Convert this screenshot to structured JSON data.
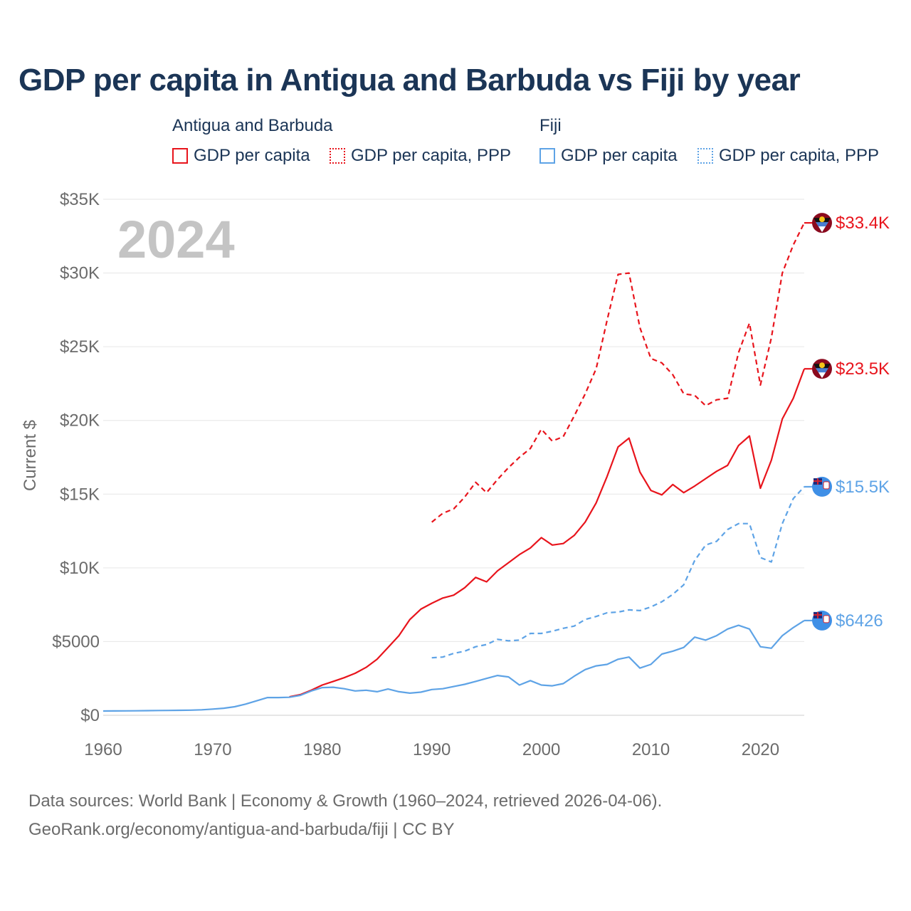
{
  "title": "GDP per capita in Antigua and Barbuda vs Fiji by year",
  "legend": {
    "groups": [
      {
        "name": "Antigua and Barbuda",
        "items": [
          "GDP per capita",
          "GDP per capita, PPP"
        ]
      },
      {
        "name": "Fiji",
        "items": [
          "GDP per capita",
          "GDP per capita, PPP"
        ]
      }
    ]
  },
  "year_watermark": "2024",
  "source": {
    "line1": "Data sources: World Bank | Economy & Growth (1960–2024, retrieved 2026-04-06).",
    "line2": "GeoRank.org/economy/antigua-and-barbuda/fiji | CC BY"
  },
  "colors": {
    "antigua": "#e8141c",
    "fiji": "#5ea3e6",
    "title": "#1b3556",
    "grid": "#e6e6e6",
    "axis_text": "#6b6b6b"
  },
  "chart_data": {
    "type": "line",
    "title": "GDP per capita in Antigua and Barbuda vs Fiji by year",
    "xlabel": "",
    "ylabel": "Current $",
    "xlim": [
      1960,
      2024
    ],
    "ylim": [
      0,
      35000
    ],
    "x_ticks": [
      1960,
      1970,
      1980,
      1990,
      2000,
      2010,
      2020
    ],
    "x_tick_labels": [
      "1960",
      "1970",
      "1980",
      "1990",
      "2000",
      "2010",
      "2020"
    ],
    "y_ticks": [
      0,
      5000,
      10000,
      15000,
      20000,
      25000,
      30000,
      35000
    ],
    "y_tick_labels": [
      "$0",
      "$5000",
      "$10K",
      "$15K",
      "$20K",
      "$25K",
      "$30K",
      "$35K"
    ],
    "grid": true,
    "series": [
      {
        "name": "Antigua and Barbuda GDP per capita",
        "country": "antigua",
        "style": "solid",
        "end_label": "$23.5K",
        "points": [
          [
            1977,
            1250
          ],
          [
            1978,
            1400
          ],
          [
            1979,
            1700
          ],
          [
            1980,
            2050
          ],
          [
            1981,
            2300
          ],
          [
            1982,
            2550
          ],
          [
            1983,
            2850
          ],
          [
            1984,
            3250
          ],
          [
            1985,
            3800
          ],
          [
            1986,
            4600
          ],
          [
            1987,
            5400
          ],
          [
            1988,
            6500
          ],
          [
            1989,
            7200
          ],
          [
            1990,
            7600
          ],
          [
            1991,
            7950
          ],
          [
            1992,
            8150
          ],
          [
            1993,
            8650
          ],
          [
            1994,
            9350
          ],
          [
            1995,
            9050
          ],
          [
            1996,
            9800
          ],
          [
            1997,
            10350
          ],
          [
            1998,
            10900
          ],
          [
            1999,
            11350
          ],
          [
            2000,
            12050
          ],
          [
            2001,
            11550
          ],
          [
            2002,
            11650
          ],
          [
            2003,
            12200
          ],
          [
            2004,
            13100
          ],
          [
            2005,
            14400
          ],
          [
            2006,
            16200
          ],
          [
            2007,
            18200
          ],
          [
            2008,
            18800
          ],
          [
            2009,
            16500
          ],
          [
            2010,
            15250
          ],
          [
            2011,
            14950
          ],
          [
            2012,
            15650
          ],
          [
            2013,
            15100
          ],
          [
            2014,
            15550
          ],
          [
            2015,
            16050
          ],
          [
            2016,
            16550
          ],
          [
            2017,
            16950
          ],
          [
            2018,
            18300
          ],
          [
            2019,
            18950
          ],
          [
            2020,
            15400
          ],
          [
            2021,
            17300
          ],
          [
            2022,
            20100
          ],
          [
            2023,
            21500
          ],
          [
            2024,
            23500
          ]
        ]
      },
      {
        "name": "Antigua and Barbuda GDP per capita, PPP",
        "country": "antigua",
        "style": "dashed",
        "end_label": "$33.4K",
        "points": [
          [
            1990,
            13100
          ],
          [
            1991,
            13700
          ],
          [
            1992,
            14000
          ],
          [
            1993,
            14800
          ],
          [
            1994,
            15800
          ],
          [
            1995,
            15100
          ],
          [
            1996,
            16000
          ],
          [
            1997,
            16800
          ],
          [
            1998,
            17500
          ],
          [
            1999,
            18100
          ],
          [
            2000,
            19400
          ],
          [
            2001,
            18600
          ],
          [
            2002,
            18900
          ],
          [
            2003,
            20300
          ],
          [
            2004,
            21800
          ],
          [
            2005,
            23500
          ],
          [
            2006,
            26800
          ],
          [
            2007,
            29900
          ],
          [
            2008,
            30000
          ],
          [
            2009,
            26300
          ],
          [
            2010,
            24200
          ],
          [
            2011,
            23900
          ],
          [
            2012,
            23100
          ],
          [
            2013,
            21800
          ],
          [
            2014,
            21700
          ],
          [
            2015,
            21000
          ],
          [
            2016,
            21400
          ],
          [
            2017,
            21500
          ],
          [
            2018,
            24600
          ],
          [
            2019,
            26600
          ],
          [
            2020,
            22400
          ],
          [
            2021,
            25600
          ],
          [
            2022,
            30000
          ],
          [
            2023,
            31900
          ],
          [
            2024,
            33400
          ]
        ]
      },
      {
        "name": "Fiji GDP per capita",
        "country": "fiji",
        "style": "solid",
        "end_label": "$6426",
        "points": [
          [
            1960,
            290
          ],
          [
            1961,
            295
          ],
          [
            1962,
            300
          ],
          [
            1963,
            305
          ],
          [
            1964,
            315
          ],
          [
            1965,
            325
          ],
          [
            1966,
            330
          ],
          [
            1967,
            340
          ],
          [
            1968,
            350
          ],
          [
            1969,
            370
          ],
          [
            1970,
            420
          ],
          [
            1971,
            480
          ],
          [
            1972,
            580
          ],
          [
            1973,
            760
          ],
          [
            1974,
            980
          ],
          [
            1975,
            1200
          ],
          [
            1976,
            1200
          ],
          [
            1977,
            1220
          ],
          [
            1978,
            1350
          ],
          [
            1979,
            1650
          ],
          [
            1980,
            1880
          ],
          [
            1981,
            1900
          ],
          [
            1982,
            1800
          ],
          [
            1983,
            1650
          ],
          [
            1984,
            1700
          ],
          [
            1985,
            1600
          ],
          [
            1986,
            1780
          ],
          [
            1987,
            1600
          ],
          [
            1988,
            1500
          ],
          [
            1989,
            1570
          ],
          [
            1990,
            1750
          ],
          [
            1991,
            1800
          ],
          [
            1992,
            1950
          ],
          [
            1993,
            2100
          ],
          [
            1994,
            2300
          ],
          [
            1995,
            2500
          ],
          [
            1996,
            2700
          ],
          [
            1997,
            2600
          ],
          [
            1998,
            2050
          ],
          [
            1999,
            2350
          ],
          [
            2000,
            2050
          ],
          [
            2001,
            2000
          ],
          [
            2002,
            2150
          ],
          [
            2003,
            2650
          ],
          [
            2004,
            3100
          ],
          [
            2005,
            3350
          ],
          [
            2006,
            3450
          ],
          [
            2007,
            3800
          ],
          [
            2008,
            3950
          ],
          [
            2009,
            3200
          ],
          [
            2010,
            3450
          ],
          [
            2011,
            4150
          ],
          [
            2012,
            4350
          ],
          [
            2013,
            4600
          ],
          [
            2014,
            5300
          ],
          [
            2015,
            5100
          ],
          [
            2016,
            5400
          ],
          [
            2017,
            5850
          ],
          [
            2018,
            6100
          ],
          [
            2019,
            5850
          ],
          [
            2020,
            4650
          ],
          [
            2021,
            4550
          ],
          [
            2022,
            5400
          ],
          [
            2023,
            5950
          ],
          [
            2024,
            6426
          ]
        ]
      },
      {
        "name": "Fiji GDP per capita, PPP",
        "country": "fiji",
        "style": "dashed",
        "end_label": "$15.5K",
        "points": [
          [
            1990,
            3900
          ],
          [
            1991,
            3950
          ],
          [
            1992,
            4200
          ],
          [
            1993,
            4350
          ],
          [
            1994,
            4650
          ],
          [
            1995,
            4800
          ],
          [
            1996,
            5150
          ],
          [
            1997,
            5050
          ],
          [
            1998,
            5100
          ],
          [
            1999,
            5550
          ],
          [
            2000,
            5550
          ],
          [
            2001,
            5700
          ],
          [
            2002,
            5900
          ],
          [
            2003,
            6050
          ],
          [
            2004,
            6500
          ],
          [
            2005,
            6700
          ],
          [
            2006,
            6950
          ],
          [
            2007,
            7000
          ],
          [
            2008,
            7150
          ],
          [
            2009,
            7100
          ],
          [
            2010,
            7350
          ],
          [
            2011,
            7700
          ],
          [
            2012,
            8200
          ],
          [
            2013,
            8850
          ],
          [
            2014,
            10500
          ],
          [
            2015,
            11550
          ],
          [
            2016,
            11800
          ],
          [
            2017,
            12600
          ],
          [
            2018,
            13000
          ],
          [
            2019,
            13000
          ],
          [
            2020,
            10700
          ],
          [
            2021,
            10400
          ],
          [
            2022,
            13000
          ],
          [
            2023,
            14700
          ],
          [
            2024,
            15500
          ]
        ]
      }
    ]
  }
}
